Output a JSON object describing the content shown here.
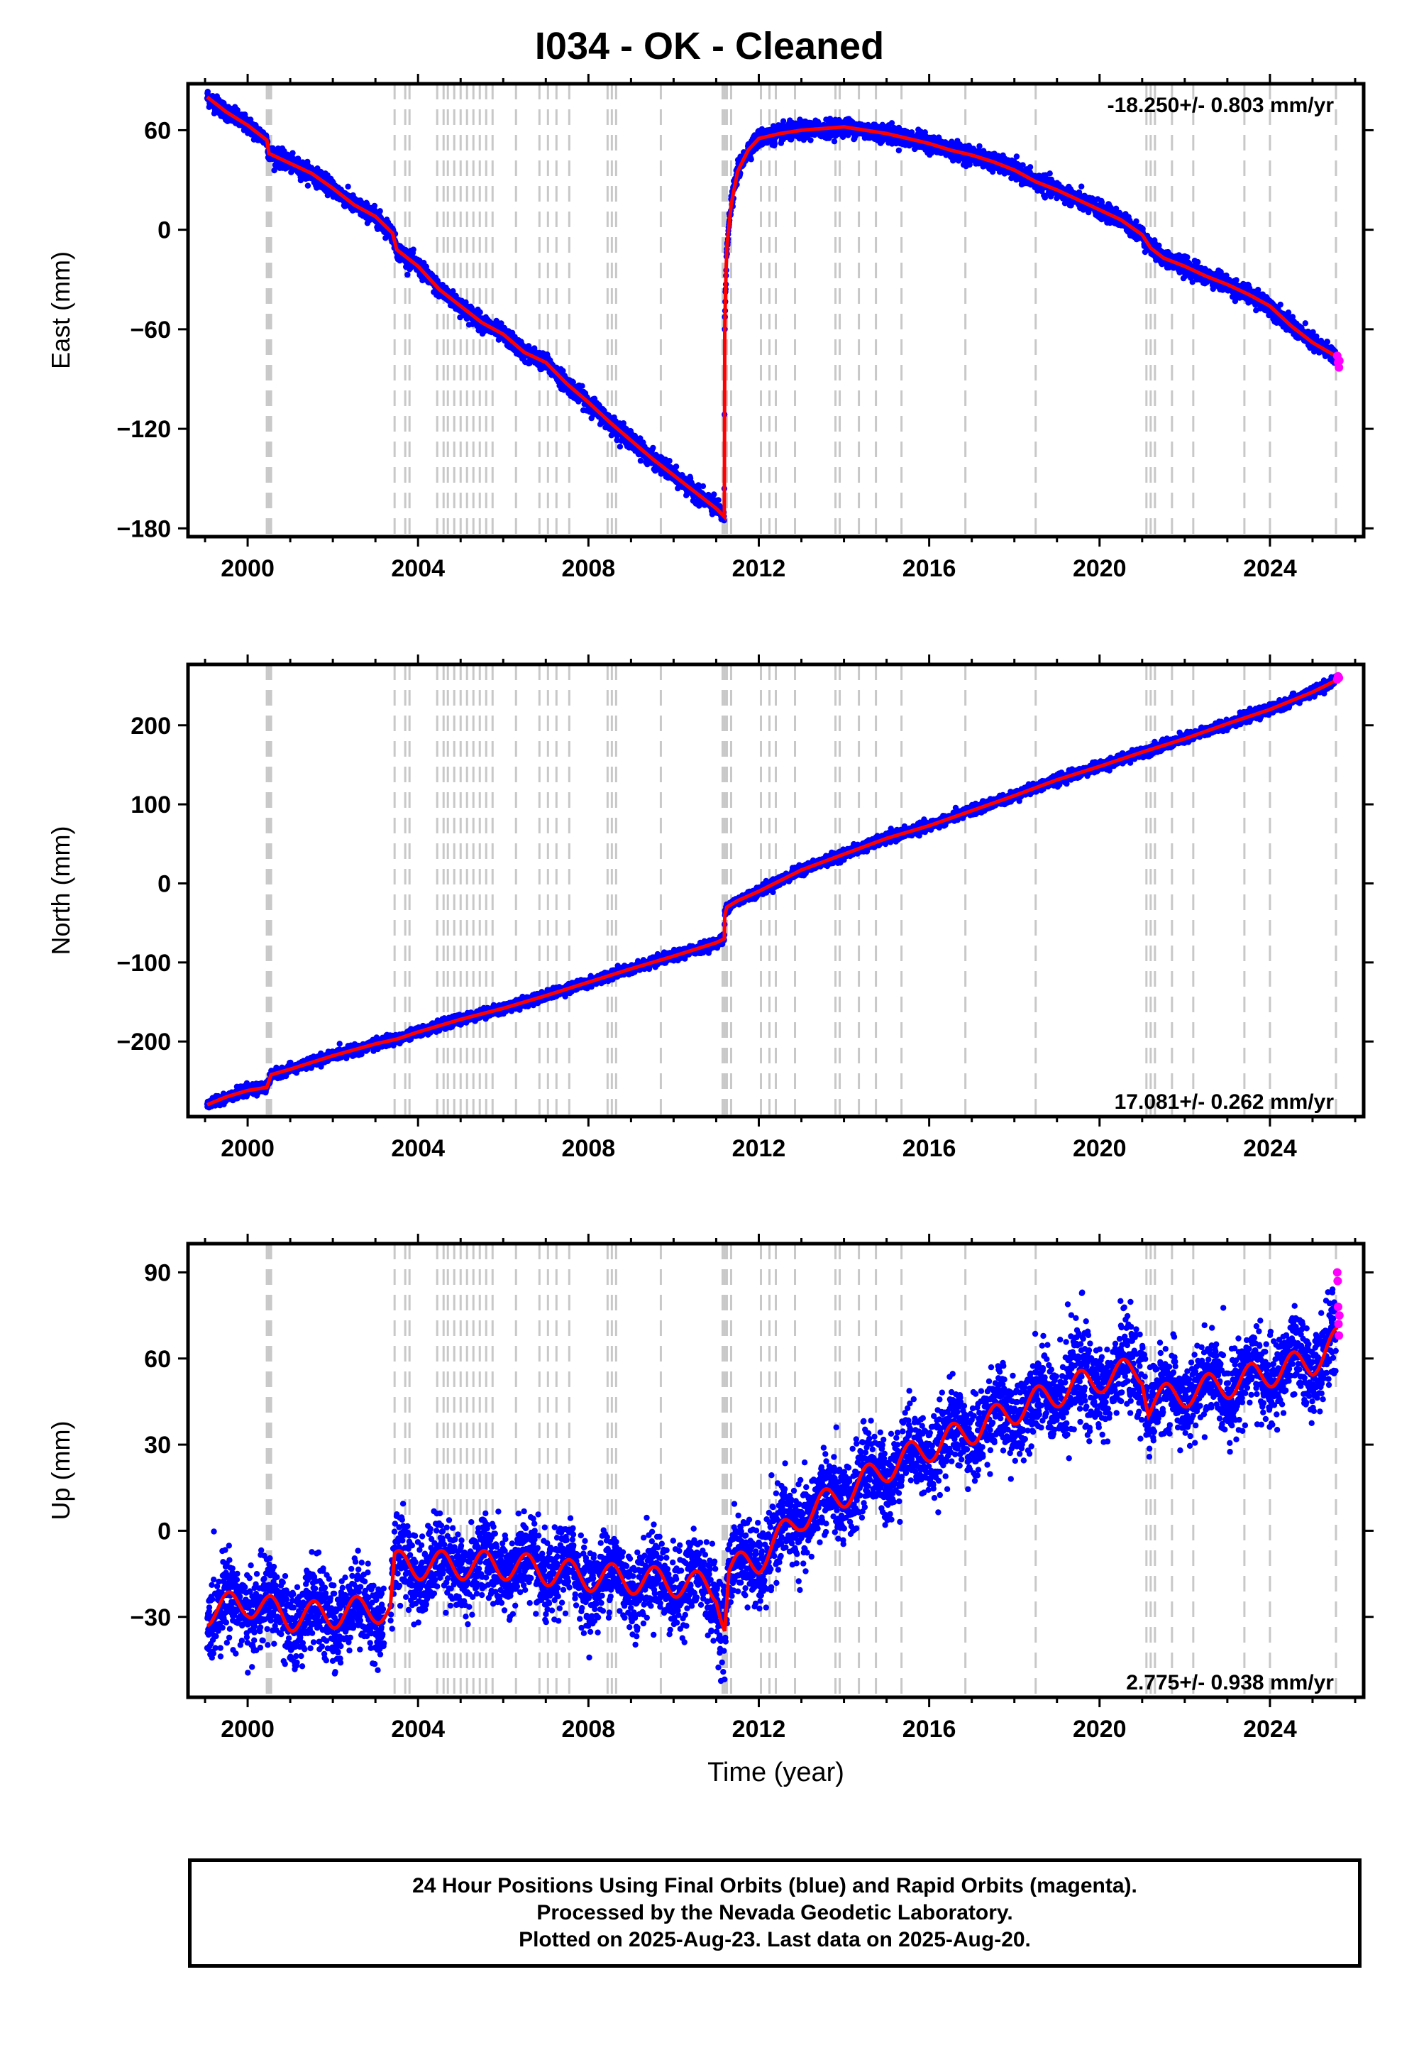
{
  "title": "I034  - OK - Cleaned",
  "caption": {
    "line1": "24 Hour Positions Using Final Orbits (blue) and Rapid Orbits (magenta).",
    "line2": "Processed by the Nevada Geodetic Laboratory.",
    "line3": "Plotted on 2025-Aug-23. Last data on 2025-Aug-20."
  },
  "colors": {
    "final_orbits": "#0000ff",
    "rapid_orbits": "#ff00ff",
    "model": "#ff0000",
    "event_lines": "#c8c8c8"
  },
  "event_lines_years": [
    2000.45,
    2000.5,
    2000.55,
    2003.45,
    2003.7,
    2003.8,
    2004.45,
    2004.6,
    2004.7,
    2004.85,
    2005.0,
    2005.15,
    2005.3,
    2005.45,
    2005.6,
    2005.75,
    2006.3,
    2006.85,
    2007.05,
    2007.25,
    2007.55,
    2008.45,
    2008.55,
    2008.65,
    2009.7,
    2011.15,
    2011.2,
    2011.25,
    2011.35,
    2012.05,
    2012.25,
    2012.4,
    2012.85,
    2013.8,
    2013.9,
    2014.35,
    2014.75,
    2015.35,
    2016.85,
    2018.5,
    2021.1,
    2021.2,
    2021.3,
    2021.7,
    2022.2,
    2023.4,
    2024.0,
    2025.55
  ],
  "chart_data": [
    {
      "type": "scatter",
      "component": "East",
      "ylabel": "East (mm)",
      "xlabel": "",
      "rate_label": "-18.250+/- 0.803 mm/yr",
      "xlim": [
        1998.6,
        2026.2
      ],
      "ylim": [
        -185,
        88
      ],
      "xticks": [
        2000,
        2004,
        2008,
        2012,
        2016,
        2020,
        2024
      ],
      "yticks": [
        60,
        0,
        -60,
        -120,
        -180
      ],
      "model_series": {
        "name": "model",
        "x": [
          1999.05,
          1999.5,
          2000.0,
          2000.45,
          2000.5,
          2001.0,
          2001.5,
          2002.0,
          2002.5,
          2003.0,
          2003.4,
          2003.5,
          2004.0,
          2004.5,
          2005.0,
          2005.5,
          2006.0,
          2006.5,
          2007.0,
          2007.5,
          2008.0,
          2008.5,
          2009.0,
          2009.5,
          2010.0,
          2010.5,
          2011.0,
          2011.19,
          2011.2,
          2011.22,
          2011.25,
          2011.35,
          2011.5,
          2011.75,
          2012.0,
          2012.5,
          2013.0,
          2013.5,
          2014.0,
          2014.5,
          2015.0,
          2015.5,
          2016.0,
          2016.5,
          2017.0,
          2017.5,
          2018.0,
          2018.5,
          2019.0,
          2019.5,
          2020.0,
          2020.5,
          2021.0,
          2021.2,
          2021.5,
          2022.0,
          2022.5,
          2023.0,
          2023.5,
          2024.0,
          2024.5,
          2025.0,
          2025.6
        ],
        "y": [
          80,
          71,
          63,
          54,
          46,
          40,
          34,
          25,
          15,
          8,
          -2,
          -12,
          -22,
          -36,
          -46,
          -56,
          -63,
          -74,
          -80,
          -93,
          -104,
          -116,
          -127,
          -138,
          -148,
          -158,
          -168,
          -173,
          -60,
          -35,
          -10,
          15,
          35,
          48,
          55,
          58,
          60,
          61,
          62,
          60,
          58,
          55,
          52,
          48,
          45,
          41,
          36,
          29,
          24,
          18,
          12,
          6,
          -3,
          -11,
          -17,
          -22,
          -28,
          -33,
          -39,
          -46,
          -58,
          -68,
          -77
        ]
      },
      "rapid_points": {
        "name": "rapid",
        "x": [
          2025.58,
          2025.6,
          2025.62,
          2025.63
        ],
        "y": [
          -76,
          -80,
          -83,
          -79
        ]
      },
      "scatter_style": "daily points scattered about model, std ~2.5 mm"
    },
    {
      "type": "scatter",
      "component": "North",
      "ylabel": "North (mm)",
      "xlabel": "",
      "rate_label": "17.081+/- 0.262 mm/yr",
      "xlim": [
        1998.6,
        2026.2
      ],
      "ylim": [
        -295,
        277
      ],
      "xticks": [
        2000,
        2004,
        2008,
        2012,
        2016,
        2020,
        2024
      ],
      "yticks": [
        200,
        100,
        0,
        -100,
        -200
      ],
      "model_series": {
        "name": "model",
        "x": [
          1999.05,
          1999.5,
          2000.0,
          2000.45,
          2000.55,
          2001.0,
          2002.0,
          2003.0,
          2003.5,
          2004.0,
          2004.5,
          2005.0,
          2006.0,
          2007.0,
          2008.0,
          2009.0,
          2010.0,
          2011.0,
          2011.19,
          2011.2,
          2011.25,
          2011.5,
          2012.0,
          2013.0,
          2014.0,
          2015.0,
          2016.0,
          2017.0,
          2018.0,
          2019.0,
          2020.0,
          2021.0,
          2022.0,
          2023.0,
          2024.0,
          2025.0,
          2025.6
        ],
        "y": [
          -280,
          -270,
          -262,
          -258,
          -242,
          -235,
          -218,
          -203,
          -197,
          -188,
          -180,
          -172,
          -158,
          -142,
          -125,
          -108,
          -92,
          -75,
          -70,
          -40,
          -30,
          -22,
          -10,
          17,
          37,
          57,
          73,
          92,
          111,
          131,
          148,
          166,
          183,
          202,
          220,
          242,
          258
        ]
      },
      "rapid_points": {
        "name": "rapid",
        "x": [
          2025.58,
          2025.6,
          2025.62
        ],
        "y": [
          258,
          262,
          260
        ]
      },
      "scatter_style": "daily points scattered about model, std ~3 mm"
    },
    {
      "type": "scatter",
      "component": "Up",
      "ylabel": "Up (mm)",
      "xlabel": "Time (year)",
      "rate_label": "2.775+/- 0.938 mm/yr",
      "xlim": [
        1998.6,
        2026.2
      ],
      "ylim": [
        -58,
        100
      ],
      "xticks": [
        2000,
        2004,
        2008,
        2012,
        2016,
        2020,
        2024
      ],
      "yticks": [
        90,
        60,
        30,
        0,
        -30
      ],
      "model_series": {
        "name": "model",
        "seasonal_amplitude_mm": 5,
        "x": [
          1999.05,
          2000.0,
          2001.0,
          2002.0,
          2003.0,
          2003.35,
          2003.45,
          2004.0,
          2005.0,
          2006.0,
          2007.0,
          2008.0,
          2009.0,
          2010.0,
          2011.0,
          2011.2,
          2011.3,
          2012.0,
          2013.0,
          2014.0,
          2015.0,
          2016.0,
          2017.0,
          2018.0,
          2019.0,
          2020.0,
          2021.0,
          2021.15,
          2021.25,
          2022.0,
          2023.0,
          2024.0,
          2025.0,
          2025.6
        ],
        "y": [
          -28,
          -25,
          -30,
          -29,
          -27,
          -28,
          -12,
          -12,
          -12,
          -12,
          -14,
          -16,
          -17,
          -18,
          -20,
          -32,
          -14,
          -10,
          5,
          13,
          22,
          29,
          35,
          42,
          48,
          53,
          56,
          44,
          45,
          48,
          51,
          55,
          59,
          66
        ]
      },
      "rapid_points": {
        "name": "rapid",
        "x": [
          2025.58,
          2025.59,
          2025.6,
          2025.61,
          2025.62,
          2025.63
        ],
        "y": [
          90,
          87,
          78,
          72,
          68,
          75
        ]
      },
      "scatter_style": "daily points scattered about model, std ~7 mm, larger excursions near 2019.5"
    }
  ]
}
